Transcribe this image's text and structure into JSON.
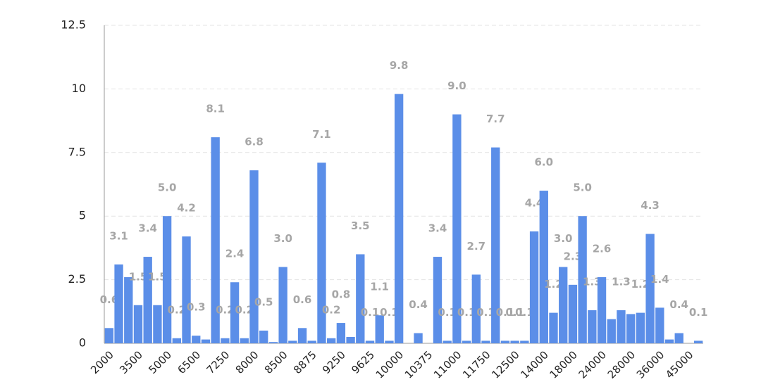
{
  "chart_data": {
    "type": "bar",
    "categories": [
      "2000",
      null,
      null,
      "3500",
      null,
      null,
      "5000",
      null,
      null,
      "6500",
      null,
      null,
      "7250",
      null,
      null,
      "8000",
      null,
      null,
      "8500",
      null,
      null,
      "8875",
      null,
      null,
      "9250",
      null,
      null,
      "9625",
      null,
      null,
      "10000",
      null,
      null,
      "10375",
      null,
      null,
      "11000",
      null,
      null,
      "11750",
      null,
      null,
      "12500",
      null,
      null,
      "14000",
      null,
      null,
      "18000",
      null,
      null,
      "24000",
      null,
      null,
      "28000",
      null,
      null,
      "36000",
      null,
      null,
      "45000",
      null
    ],
    "values": [
      0.6,
      3.1,
      2.6,
      1.5,
      3.4,
      1.5,
      5.0,
      0.2,
      4.2,
      0.3,
      0.15,
      8.1,
      0.2,
      2.4,
      0.2,
      6.8,
      0.5,
      0.05,
      3.0,
      0.1,
      0.6,
      0.1,
      7.1,
      0.2,
      0.8,
      0.25,
      3.5,
      0.1,
      1.1,
      0.1,
      9.8,
      0,
      0.4,
      0,
      3.4,
      0.1,
      9.0,
      0.1,
      2.7,
      0.1,
      7.7,
      0.1,
      0.1,
      0.1,
      4.4,
      6.0,
      1.2,
      3.0,
      2.3,
      5.0,
      1.3,
      2.6,
      0.95,
      1.3,
      1.15,
      1.2,
      4.3,
      1.4,
      0.15,
      0.4,
      0,
      0.1
    ],
    "value_labels": [
      "0.6",
      "3.1",
      null,
      "1.5",
      "3.4",
      "1.5",
      "5.0",
      "0.2",
      "4.2",
      "0.3",
      null,
      "8.1",
      "0.2",
      "2.4",
      "0.2",
      "6.8",
      "0.5",
      null,
      "3.0",
      null,
      "0.6",
      null,
      "7.1",
      "0.2",
      "0.8",
      null,
      "3.5",
      "0.1",
      "1.1",
      "0.1",
      "9.8",
      null,
      "0.4",
      null,
      "3.4",
      "0.1",
      "9.0",
      "0.1",
      "2.7",
      "0.1",
      "7.7",
      "0.1",
      "0.1",
      "0.1",
      "4.4",
      "6.0",
      "1.2",
      "3.0",
      "2.3",
      "5.0",
      "1.3",
      "2.6",
      null,
      "1.3",
      null,
      "1.2",
      "4.3",
      "1.4",
      null,
      "0.4",
      null,
      "0.1"
    ],
    "color": "#5b8ee8",
    "ylim": [
      0,
      12.5
    ],
    "yticks": [
      0,
      2.5,
      5,
      7.5,
      10,
      12.5
    ],
    "grid": true
  }
}
